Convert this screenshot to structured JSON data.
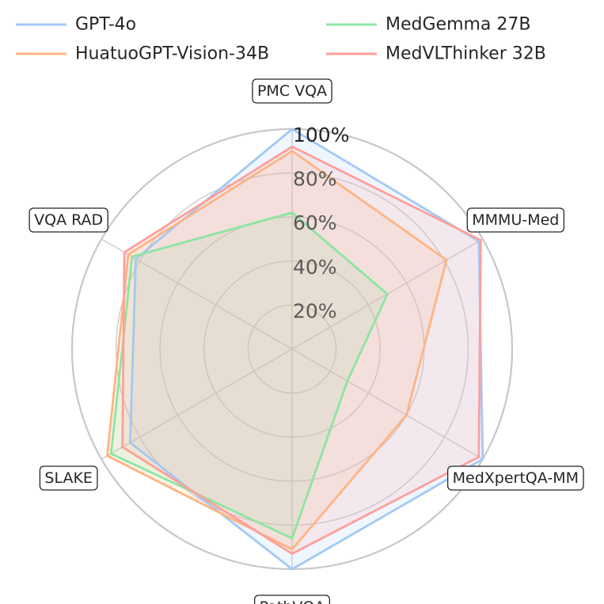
{
  "chart_data": {
    "type": "radar",
    "axes": [
      "PMC VQA",
      "MMMU-Med",
      "MedXpertQA-MM",
      "PathVQA",
      "SLAKE",
      "VQA RAD"
    ],
    "radial_ticks": [
      "20%",
      "40%",
      "60%",
      "80%",
      "100%"
    ],
    "rlim": [
      0,
      100
    ],
    "grid": true,
    "legend_position": "top",
    "series": [
      {
        "name": "GPT-4o",
        "color": "#a1c9f4",
        "values": [
          100,
          98,
          100,
          100,
          85,
          82
        ]
      },
      {
        "name": "HuatuoGPT-Vision-34B",
        "color": "#ffb482",
        "values": [
          90,
          81,
          60,
          91,
          97,
          86
        ]
      },
      {
        "name": "MedGemma 27B",
        "color": "#8de5a1",
        "values": [
          62,
          50,
          29,
          86,
          95,
          84
        ]
      },
      {
        "name": "MedVLThinker 32B",
        "color": "#ff9f9b",
        "values": [
          92,
          99,
          98,
          93,
          89,
          88
        ]
      }
    ]
  }
}
